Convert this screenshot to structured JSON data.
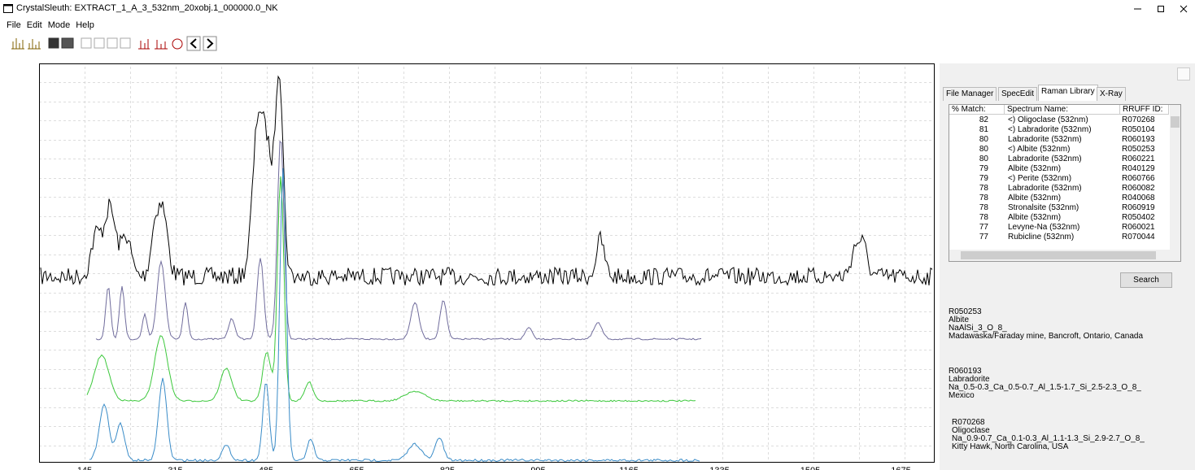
{
  "window": {
    "title": "CrystalSleuth: EXTRACT_1_A_3_532nm_20xobj.1_000000.0_NK"
  },
  "menu": [
    "File",
    "Edit",
    "Mode",
    "Help"
  ],
  "plot": {
    "x_tick_labels": [
      "145",
      "315",
      "485",
      "655",
      "825",
      "995",
      "1165",
      "1335",
      "1505",
      "1675"
    ]
  },
  "tabs": [
    "File Manager",
    "SpecEdit",
    "Raman Library",
    "X-Ray"
  ],
  "table": {
    "headers": [
      "% Match:",
      "Spectrum Name:",
      "RRUFF ID:"
    ],
    "rows": [
      [
        "82",
        "<) Oligoclase  (532nm)",
        "R070268"
      ],
      [
        "81",
        "<) Labradorite  (532nm)",
        "R050104"
      ],
      [
        "80",
        "Labradorite  (532nm)",
        "R060193"
      ],
      [
        "80",
        "<) Albite  (532nm)",
        "R050253"
      ],
      [
        "80",
        "Labradorite  (532nm)",
        "R060221"
      ],
      [
        "79",
        "Albite  (532nm)",
        "R040129"
      ],
      [
        "79",
        "<) Perite  (532nm)",
        "R060766"
      ],
      [
        "78",
        "Labradorite  (532nm)",
        "R060082"
      ],
      [
        "78",
        "Albite  (532nm)",
        "R040068"
      ],
      [
        "78",
        "Stronalsite  (532nm)",
        "R060919"
      ],
      [
        "78",
        "Albite  (532nm)",
        "R050402"
      ],
      [
        "77",
        "Levyne-Na  (532nm)",
        "R060021"
      ],
      [
        "77",
        "Rubicline  (532nm)",
        "R070044"
      ]
    ]
  },
  "search_button": "Search",
  "info": [
    {
      "id": "R050253",
      "name": "Albite",
      "formula": "NaAlSi_3_O_8_",
      "locality": "Madawaska/Faraday mine, Bancroft, Ontario, Canada"
    },
    {
      "id": "R060193",
      "name": "Labradorite",
      "formula": "Na_0.5-0.3_Ca_0.5-0.7_Al_1.5-1.7_Si_2.5-2.3_O_8_",
      "locality": "Mexico"
    },
    {
      "id": "R070268",
      "name": "Oligoclase",
      "formula": "Na_0.9-0.7_Ca_0.1-0.3_Al_1.1-1.3_Si_2.9-2.7_O_8_",
      "locality": "Kitty Hawk, North Carolina, USA"
    }
  ]
}
